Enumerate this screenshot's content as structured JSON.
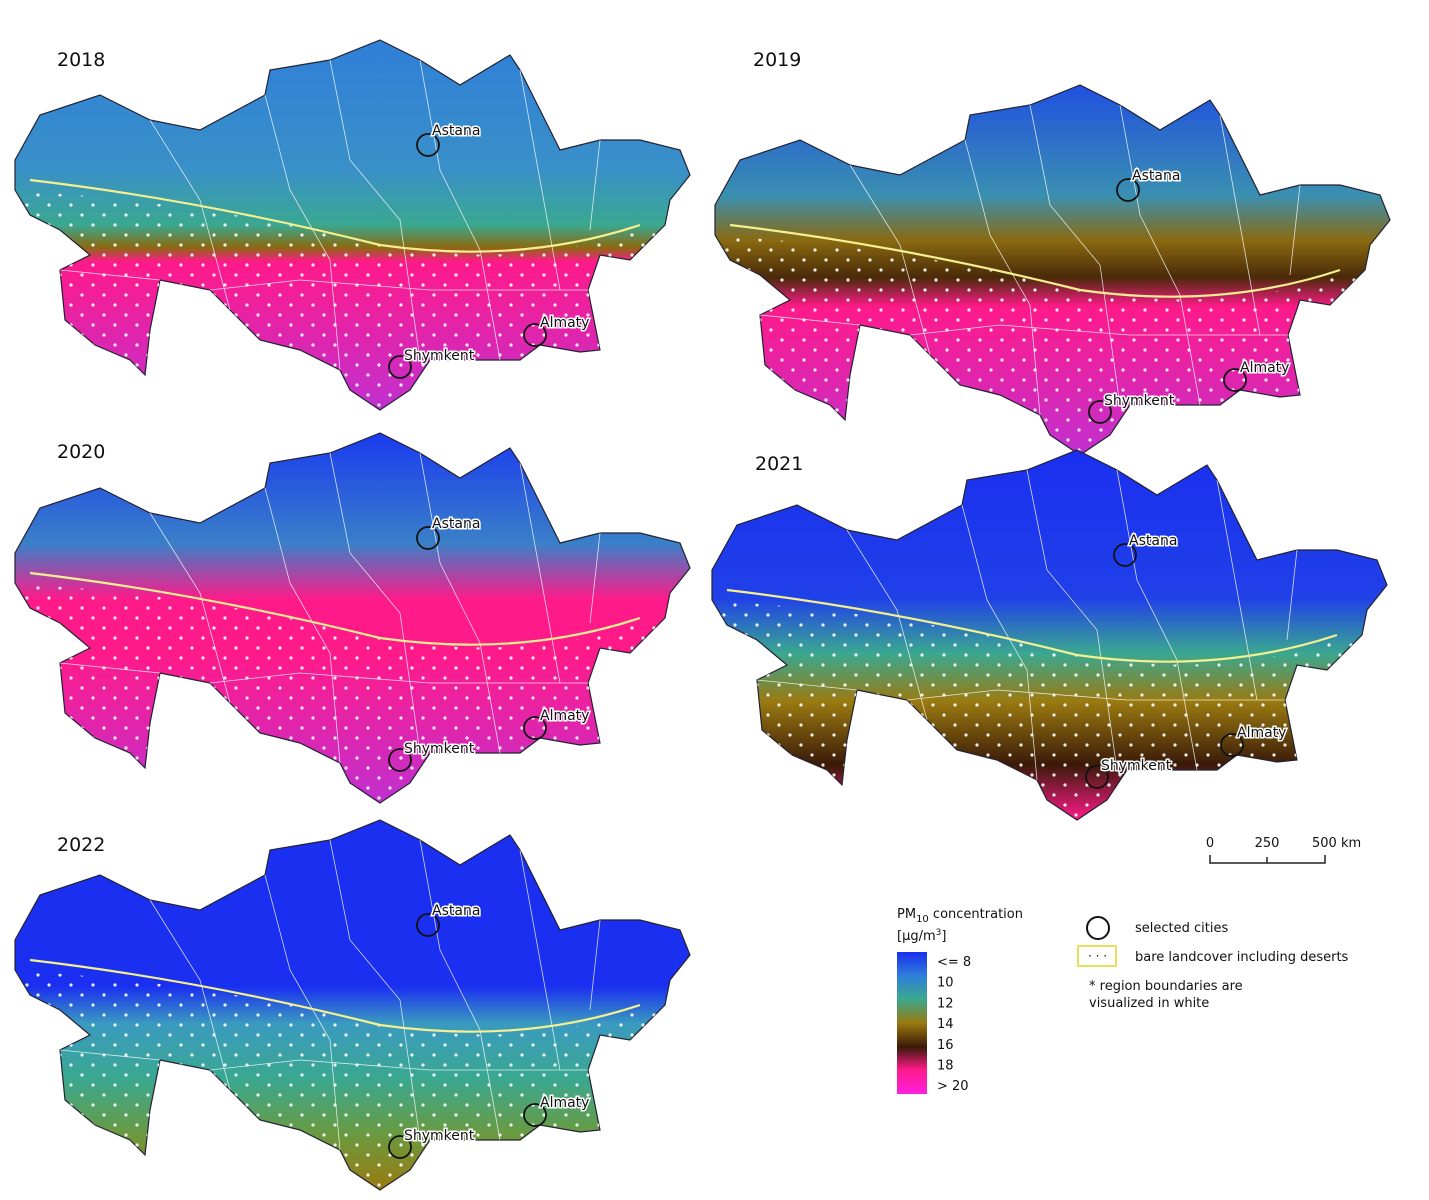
{
  "panels": [
    {
      "year": "2018",
      "cities": [
        "Astana",
        "Almaty",
        "Shymkent"
      ]
    },
    {
      "year": "2019",
      "cities": [
        "Astana",
        "Almaty",
        "Shymkent"
      ]
    },
    {
      "year": "2020",
      "cities": [
        "Astana",
        "Almaty",
        "Shymkent"
      ]
    },
    {
      "year": "2021",
      "cities": [
        "Astana",
        "Almaty",
        "Shymkent"
      ]
    },
    {
      "year": "2022",
      "cities": [
        "Astana",
        "Almaty",
        "Shymkent"
      ]
    }
  ],
  "scale_bar": [
    "0",
    "250",
    "500 km"
  ],
  "legend": {
    "title": [
      "PM",
      "10",
      " concentration"
    ],
    "units": [
      "[µg/m",
      "3",
      "]"
    ],
    "labels": [
      "<= 8",
      "10",
      "12",
      "14",
      "16",
      "18",
      "> 20"
    ],
    "items": [
      "selected cities",
      "bare landcover including deserts"
    ],
    "note": [
      "* region boundaries are",
      "visualized in white"
    ]
  }
}
